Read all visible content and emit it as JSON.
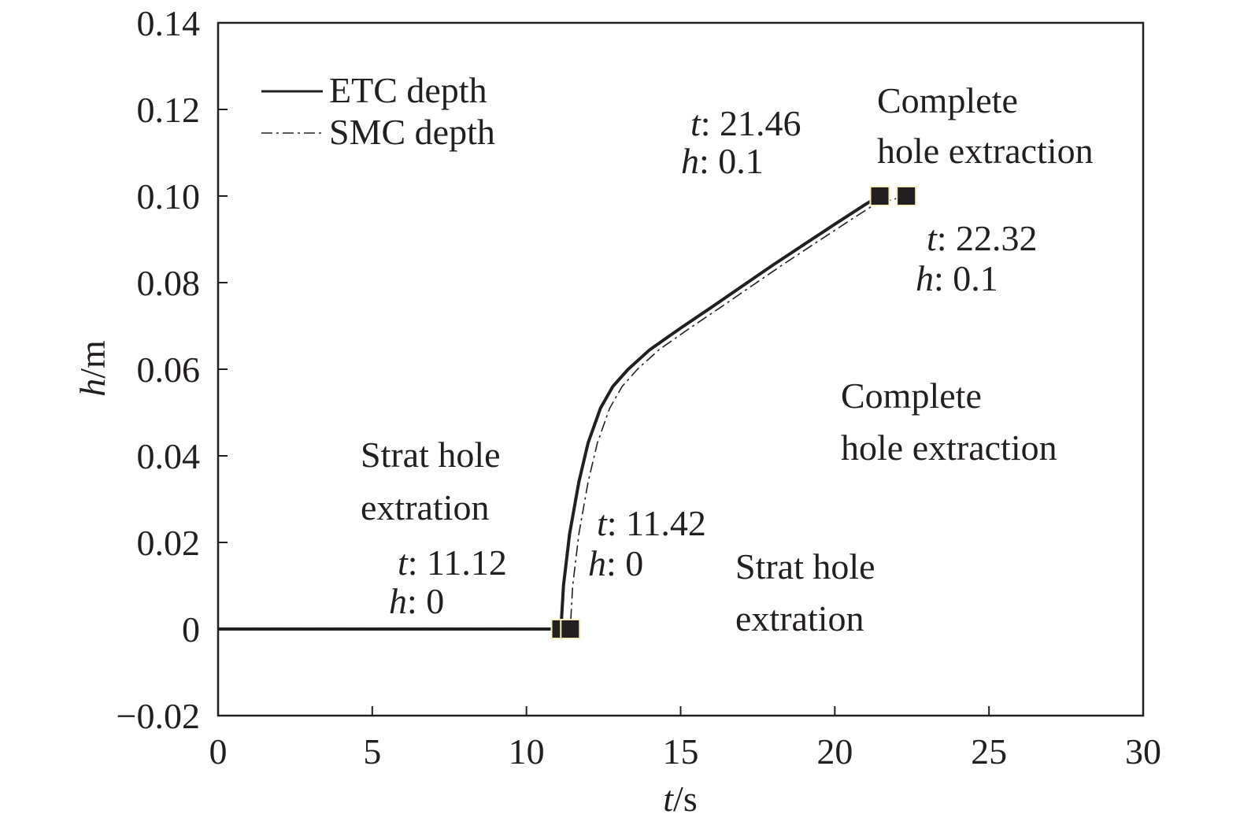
{
  "chart_data": {
    "type": "line",
    "xlabel_var": "t",
    "xlabel_unit": "/s",
    "ylabel_var": "h",
    "ylabel_unit": "/m",
    "xlim": [
      0,
      30
    ],
    "ylim": [
      -0.02,
      0.14
    ],
    "xticks": [
      0,
      5,
      10,
      15,
      20,
      25,
      30
    ],
    "xtick_labels": [
      "0",
      "5",
      "10",
      "15",
      "20",
      "25",
      "30"
    ],
    "yticks": [
      -0.02,
      0,
      0.02,
      0.04,
      0.06,
      0.08,
      0.1,
      0.12,
      0.14
    ],
    "ytick_labels": [
      "−0.02",
      "0",
      "0.02",
      "0.04",
      "0.06",
      "0.08",
      "0.10",
      "0.12",
      "0.14"
    ],
    "grid": false,
    "legend_position": "top-left",
    "series": [
      {
        "name": "ETC depth",
        "style": "solid",
        "color": "#231f20",
        "x": [
          0,
          11.12,
          11.2,
          11.4,
          11.7,
          12.0,
          12.4,
          12.8,
          13.3,
          14.0,
          15.0,
          16.0,
          17.0,
          18.0,
          19.0,
          20.0,
          21.0,
          21.46
        ],
        "y": [
          0,
          0,
          0.01,
          0.022,
          0.034,
          0.043,
          0.051,
          0.056,
          0.06,
          0.0645,
          0.0695,
          0.0743,
          0.0792,
          0.0841,
          0.0888,
          0.0935,
          0.0981,
          0.1
        ]
      },
      {
        "name": "SMC depth",
        "style": "dash-dot",
        "color": "#231f20",
        "x": [
          0,
          11.42,
          11.5,
          11.7,
          12.0,
          12.3,
          12.7,
          13.1,
          13.6,
          14.3,
          15.3,
          16.3,
          17.3,
          18.3,
          19.3,
          20.3,
          21.3,
          22.32
        ],
        "y": [
          0,
          0,
          0.01,
          0.022,
          0.034,
          0.043,
          0.051,
          0.056,
          0.06,
          0.0645,
          0.0695,
          0.0743,
          0.0792,
          0.0841,
          0.0888,
          0.0935,
          0.0981,
          0.1
        ]
      }
    ],
    "markers": [
      {
        "x": 11.12,
        "y": 0
      },
      {
        "x": 11.42,
        "y": 0
      },
      {
        "x": 21.46,
        "y": 0.1
      },
      {
        "x": 22.32,
        "y": 0.1
      }
    ],
    "annotations": {
      "etc_start": {
        "t_key": "t",
        "t_val": ": 11.12",
        "h_key": "h",
        "h_val": ": 0"
      },
      "smc_start": {
        "t_key": "t",
        "t_val": ": 11.42",
        "h_key": "h",
        "h_val": ": 0"
      },
      "etc_end": {
        "t_key": "t",
        "t_val": ": 21.46",
        "h_key": "h",
        "h_val": ": 0.1"
      },
      "smc_end": {
        "t_key": "t",
        "t_val": ": 22.32",
        "h_key": "h",
        "h_val": ": 0.1"
      },
      "etc_strat_line1": "Strat hole",
      "etc_strat_line2": "extration",
      "smc_strat_line1": "Strat hole",
      "smc_strat_line2": "extration",
      "etc_complete_line1": "Complete",
      "etc_complete_line2": "hole extraction",
      "smc_complete_line1": "Complete",
      "smc_complete_line2": "hole extraction"
    }
  }
}
